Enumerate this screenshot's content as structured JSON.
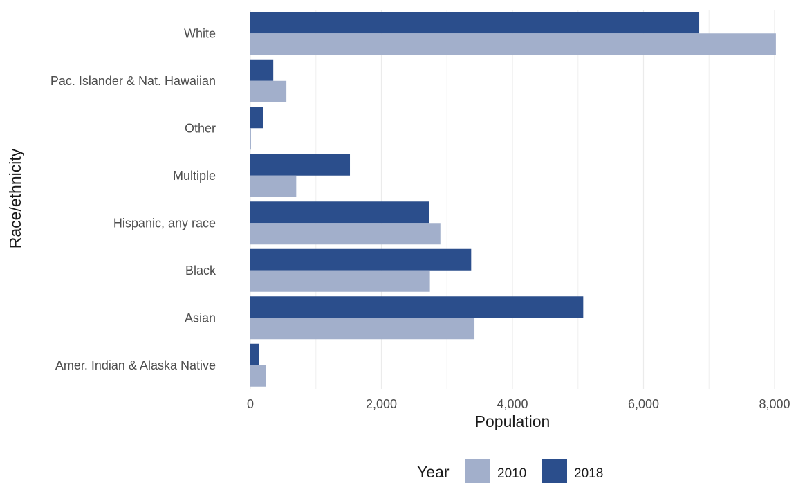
{
  "chart_data": {
    "type": "bar",
    "orientation": "horizontal",
    "categories": [
      "Amer. Indian & Alaska Native",
      "Asian",
      "Black",
      "Hispanic, any race",
      "Multiple",
      "Other",
      "Pac. Islander & Nat. Hawaiian",
      "White"
    ],
    "series": [
      {
        "name": "2010",
        "color": "#a2afcb",
        "values": [
          240,
          3420,
          2740,
          2900,
          700,
          10,
          550,
          8020
        ]
      },
      {
        "name": "2018",
        "color": "#2b4e8c",
        "values": [
          130,
          5080,
          3370,
          2730,
          1520,
          200,
          350,
          6850
        ]
      }
    ],
    "xlabel": "Population",
    "ylabel": "Race/ethnicity",
    "xlim": [
      0,
      8000
    ],
    "xticks": [
      0,
      2000,
      4000,
      6000,
      8000
    ],
    "xtick_labels": [
      "0",
      "2,000",
      "4,000",
      "6,000",
      "8,000"
    ],
    "grid": true,
    "legend": {
      "title": "Year",
      "position": "bottom"
    }
  }
}
